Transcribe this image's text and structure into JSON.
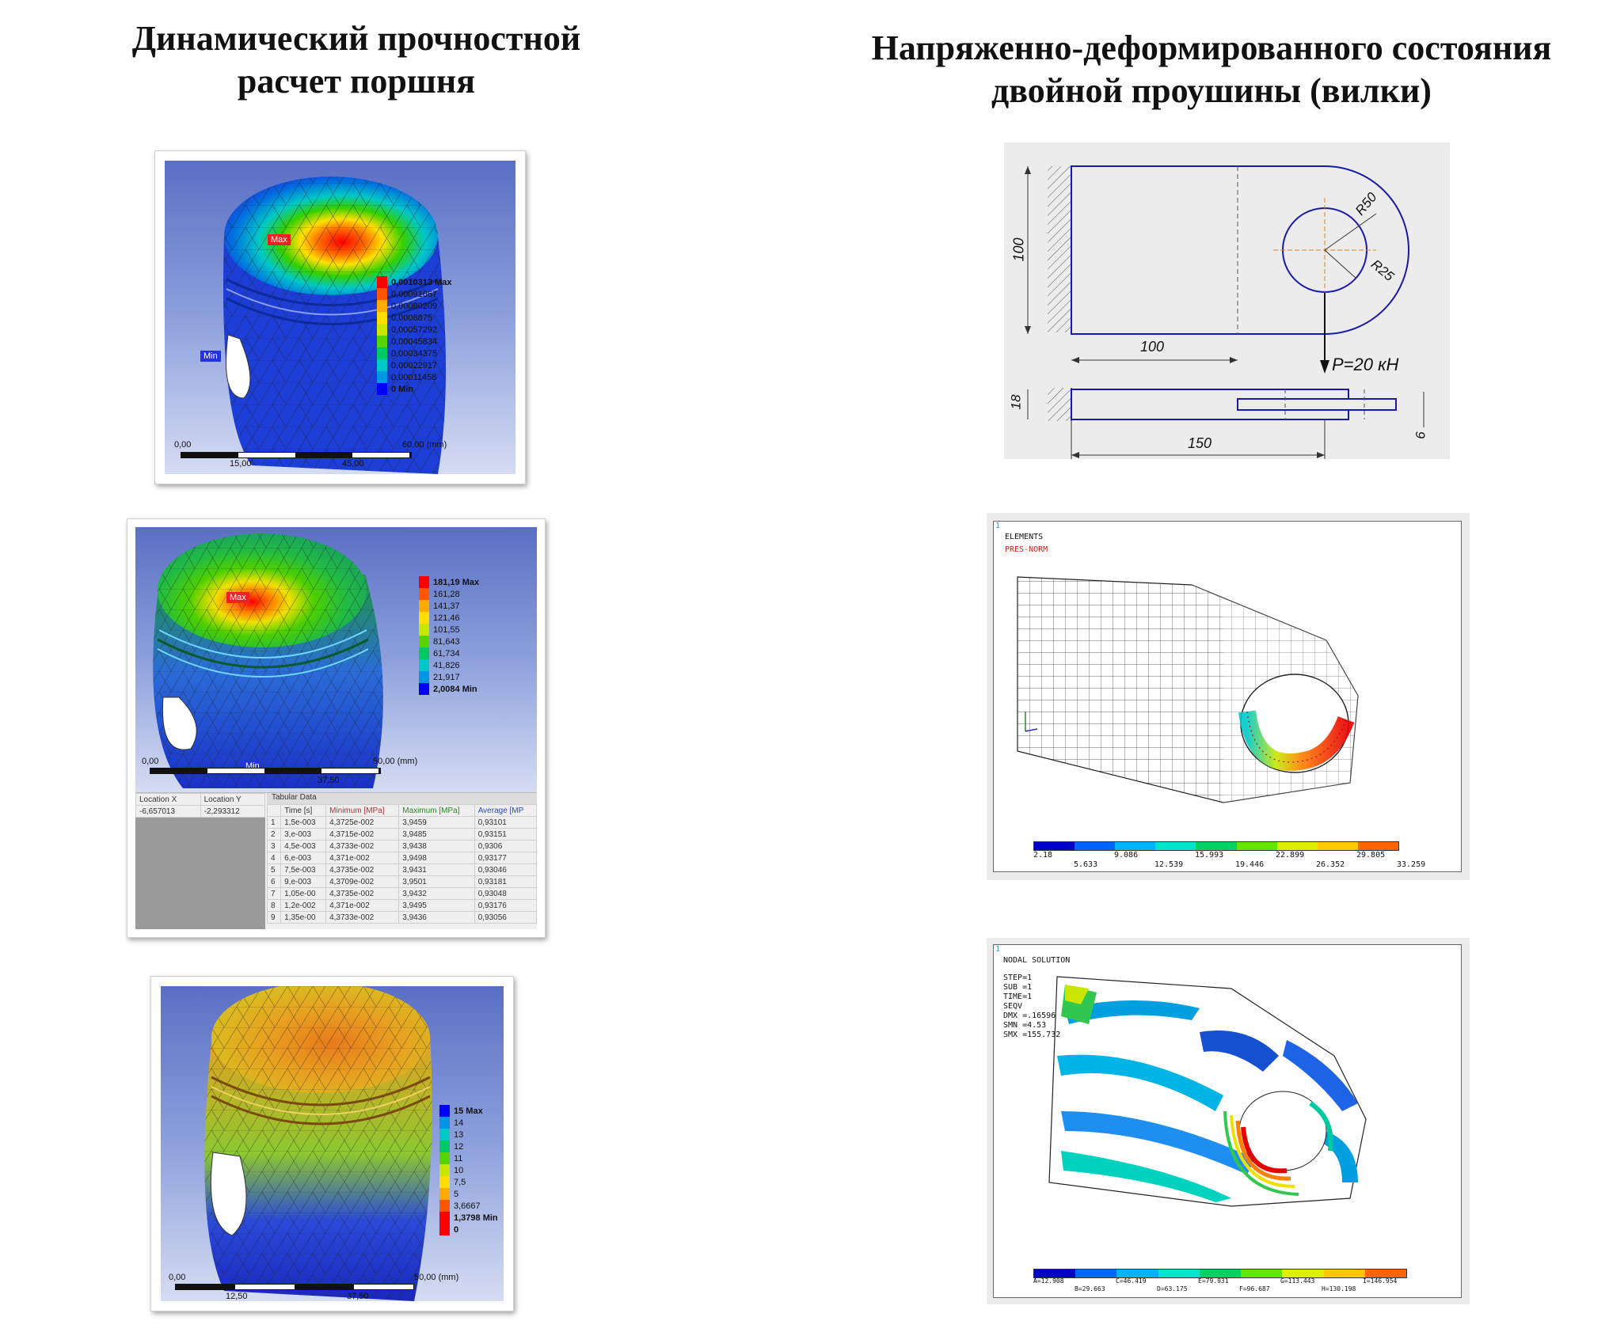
{
  "headings": {
    "left_line1": "Динамический прочностной",
    "left_line2": "расчет поршня",
    "right_line1": "Напряженно-деформированного состояния",
    "right_line2": "двойной проушины (вилки)"
  },
  "piston1": {
    "max_tag": "Max",
    "min_tag": "Min",
    "legend": [
      "0,0010313 Max",
      "0,00091667",
      "0,00080209",
      "0,0006875",
      "0,00057292",
      "0,00045834",
      "0,00034375",
      "0,00022917",
      "0,00011458",
      "0 Min"
    ],
    "scale": {
      "start": "0,00",
      "end": "60,00 (mm)",
      "t1": "15,00",
      "t2": "45,00"
    }
  },
  "piston2": {
    "max_tag": "Max",
    "min_tag": "Min",
    "legend": [
      "181,19 Max",
      "161,28",
      "141,37",
      "121,46",
      "101,55",
      "81,643",
      "61,734",
      "41,826",
      "21,917",
      "2,0084 Min"
    ],
    "scale": {
      "start": "0,00",
      "end": "50,00 (mm)",
      "mid": "37,50"
    },
    "table": {
      "title": "Tabular Data",
      "loc_headers": [
        "Location X",
        "Location Y"
      ],
      "loc_values": [
        "-6,657013",
        "-2,293312"
      ],
      "headers": [
        "Time [s]",
        "Minimum [MPa]",
        "Maximum [MPa]",
        "Average [MP"
      ],
      "rows": [
        [
          "1",
          "1,5e-003",
          "4,3725e-002",
          "3,9459",
          "0,93101"
        ],
        [
          "2",
          "3,e-003",
          "4,3715e-002",
          "3,9485",
          "0,93151"
        ],
        [
          "3",
          "4,5e-003",
          "4,3733e-002",
          "3,9438",
          "0,9306"
        ],
        [
          "4",
          "6,e-003",
          "4,371e-002",
          "3,9498",
          "0,93177"
        ],
        [
          "5",
          "7,5e-003",
          "4,3735e-002",
          "3,9431",
          "0,93046"
        ],
        [
          "6",
          "9,e-003",
          "4,3709e-002",
          "3,9501",
          "0,93181"
        ],
        [
          "7",
          "1,05e-00",
          "4,3735e-002",
          "3,9432",
          "0,93048"
        ],
        [
          "8",
          "1,2e-002",
          "4,371e-002",
          "3,9495",
          "0,93176"
        ],
        [
          "9",
          "1,35e-00",
          "4,3733e-002",
          "3,9436",
          "0,93056"
        ]
      ]
    }
  },
  "piston3": {
    "legend": [
      "15 Max",
      "14",
      "13",
      "12",
      "11",
      "10",
      "7,5",
      "5",
      "3,6667",
      "1,3798 Min",
      "0"
    ],
    "scale": {
      "start": "0,00",
      "end": "50,00 (mm)",
      "t1": "12,50",
      "t2": "37,50"
    }
  },
  "drawing": {
    "dim_100_v": "100",
    "dim_100_h": "100",
    "r50": "R50",
    "r25": "R25",
    "force": "P=20 кН",
    "dim_18": "18",
    "dim_150": "150",
    "dim_6": "6"
  },
  "mesh": {
    "line1": "1",
    "title": "ELEMENTS",
    "subtitle": "PRES-NORM",
    "top_labels": [
      "2.18",
      "9.086",
      "15.993",
      "22.899",
      "29.805"
    ],
    "bottom_labels": [
      "5.633",
      "12.539",
      "19.446",
      "26.352",
      "33.259"
    ]
  },
  "nodal": {
    "line1": "1",
    "title": "NODAL SOLUTION",
    "info": [
      "STEP=1",
      "SUB =1",
      "TIME=1",
      "SEQV",
      "DMX =.16596",
      "SMN =4.53",
      "SMX =155.732"
    ],
    "top_labels": [
      "A=12.908",
      "C=46.419",
      "E=79.931",
      "G=113.443",
      "I=146.954"
    ],
    "bottom_labels": [
      "B=29.663",
      "D=63.175",
      "F=96.687",
      "H=130.198"
    ]
  },
  "colors": {
    "ansys_ramp": [
      "#ff0000",
      "#ff5500",
      "#ffaa00",
      "#ffdd00",
      "#c8e600",
      "#55d400",
      "#00c864",
      "#00c8c8",
      "#0096e6",
      "#0000ff"
    ],
    "mapdl_ramp": [
      "#0000c8",
      "#0064ff",
      "#00b4ff",
      "#00e6c8",
      "#00d264",
      "#64e600",
      "#dcf000",
      "#ffc800",
      "#ff6400",
      "#e60000"
    ]
  }
}
